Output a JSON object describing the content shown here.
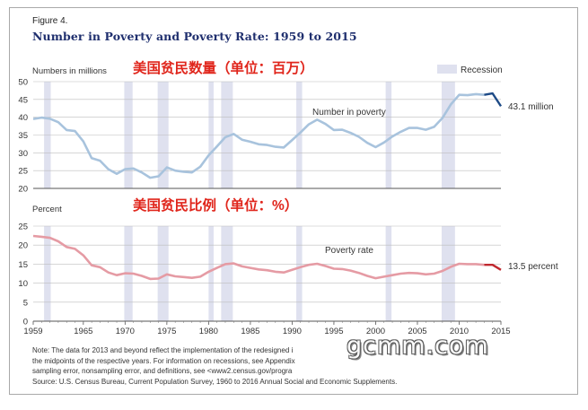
{
  "figure": {
    "label": "Figure 4.",
    "title": "Number in Poverty and Poverty Rate: 1959 to 2015",
    "legend_recession": "Recession",
    "notes": [
      "Note: The data for 2013 and beyond reflect the implementation of the redesigned i",
      "the midpoints of the respective years. For information on recessions, see Appendix",
      "sampling error, nonsampling error, and definitions, see <www2.census.gov/progra",
      "Source: U.S. Census Bureau, Current Population Survey, 1960 to 2016 Annual Social and Economic Supplements."
    ],
    "watermark": "gcmm.com"
  },
  "chart_data": [
    {
      "type": "line",
      "panel_label": "Numbers in millions",
      "chinese_caption": "美国贫民数量（单位：百万）",
      "series_label": "Number in poverty",
      "end_label": "43.1 million",
      "ylim": [
        20,
        50
      ],
      "yticks": [
        20,
        25,
        30,
        35,
        40,
        45,
        50
      ],
      "color": "#a8c3dd",
      "end_color": "#1d4a86",
      "x": [
        1959,
        1960,
        1961,
        1962,
        1963,
        1964,
        1965,
        1966,
        1967,
        1968,
        1969,
        1970,
        1971,
        1972,
        1973,
        1974,
        1975,
        1976,
        1977,
        1978,
        1979,
        1980,
        1981,
        1982,
        1983,
        1984,
        1985,
        1986,
        1987,
        1988,
        1989,
        1990,
        1991,
        1992,
        1993,
        1994,
        1995,
        1996,
        1997,
        1998,
        1999,
        2000,
        2001,
        2002,
        2003,
        2004,
        2005,
        2006,
        2007,
        2008,
        2009,
        2010,
        2011,
        2012,
        2013,
        2014,
        2015
      ],
      "values": [
        39.5,
        39.9,
        39.6,
        38.6,
        36.4,
        36.1,
        33.2,
        28.5,
        27.8,
        25.4,
        24.1,
        25.4,
        25.6,
        24.5,
        23.0,
        23.4,
        25.9,
        25.0,
        24.7,
        24.5,
        26.1,
        29.3,
        31.8,
        34.4,
        35.3,
        33.7,
        33.1,
        32.4,
        32.2,
        31.7,
        31.5,
        33.6,
        35.7,
        38.0,
        39.3,
        38.1,
        36.4,
        36.5,
        35.6,
        34.5,
        32.8,
        31.6,
        32.9,
        34.6,
        35.9,
        37.0,
        37.0,
        36.5,
        37.3,
        39.8,
        43.6,
        46.3,
        46.2,
        46.5,
        46.3,
        46.7,
        43.1
      ]
    },
    {
      "type": "line",
      "panel_label": "Percent",
      "chinese_caption": "美国贫民比例（单位：%）",
      "series_label": "Poverty rate",
      "end_label": "13.5 percent",
      "ylim": [
        0,
        25
      ],
      "yticks": [
        0,
        5,
        10,
        15,
        20,
        25
      ],
      "color": "#e59ba4",
      "end_color": "#c0282f",
      "x": [
        1959,
        1960,
        1961,
        1962,
        1963,
        1964,
        1965,
        1966,
        1967,
        1968,
        1969,
        1970,
        1971,
        1972,
        1973,
        1974,
        1975,
        1976,
        1977,
        1978,
        1979,
        1980,
        1981,
        1982,
        1983,
        1984,
        1985,
        1986,
        1987,
        1988,
        1989,
        1990,
        1991,
        1992,
        1993,
        1994,
        1995,
        1996,
        1997,
        1998,
        1999,
        2000,
        2001,
        2002,
        2003,
        2004,
        2005,
        2006,
        2007,
        2008,
        2009,
        2010,
        2011,
        2012,
        2013,
        2014,
        2015
      ],
      "values": [
        22.4,
        22.2,
        21.9,
        21.0,
        19.5,
        19.0,
        17.3,
        14.7,
        14.2,
        12.8,
        12.1,
        12.6,
        12.5,
        11.9,
        11.1,
        11.2,
        12.3,
        11.8,
        11.6,
        11.4,
        11.7,
        13.0,
        14.0,
        15.0,
        15.2,
        14.4,
        14.0,
        13.6,
        13.4,
        13.0,
        12.8,
        13.5,
        14.2,
        14.8,
        15.1,
        14.5,
        13.8,
        13.7,
        13.3,
        12.7,
        11.9,
        11.3,
        11.7,
        12.1,
        12.5,
        12.7,
        12.6,
        12.3,
        12.5,
        13.2,
        14.3,
        15.1,
        15.0,
        15.0,
        14.8,
        14.8,
        13.5
      ]
    }
  ],
  "x_axis": {
    "range": [
      1959,
      2015
    ],
    "ticks": [
      "1959",
      "1965",
      "1970",
      "1975",
      "1980",
      "1985",
      "1990",
      "1995",
      "2000",
      "2005",
      "2010",
      "2015"
    ]
  },
  "recessions": [
    [
      1960.3,
      1961.1
    ],
    [
      1969.9,
      1970.9
    ],
    [
      1973.9,
      1975.2
    ],
    [
      1980.0,
      1980.6
    ],
    [
      1981.5,
      1982.9
    ],
    [
      1990.5,
      1991.2
    ],
    [
      2001.2,
      2001.9
    ],
    [
      2007.9,
      2009.5
    ]
  ]
}
